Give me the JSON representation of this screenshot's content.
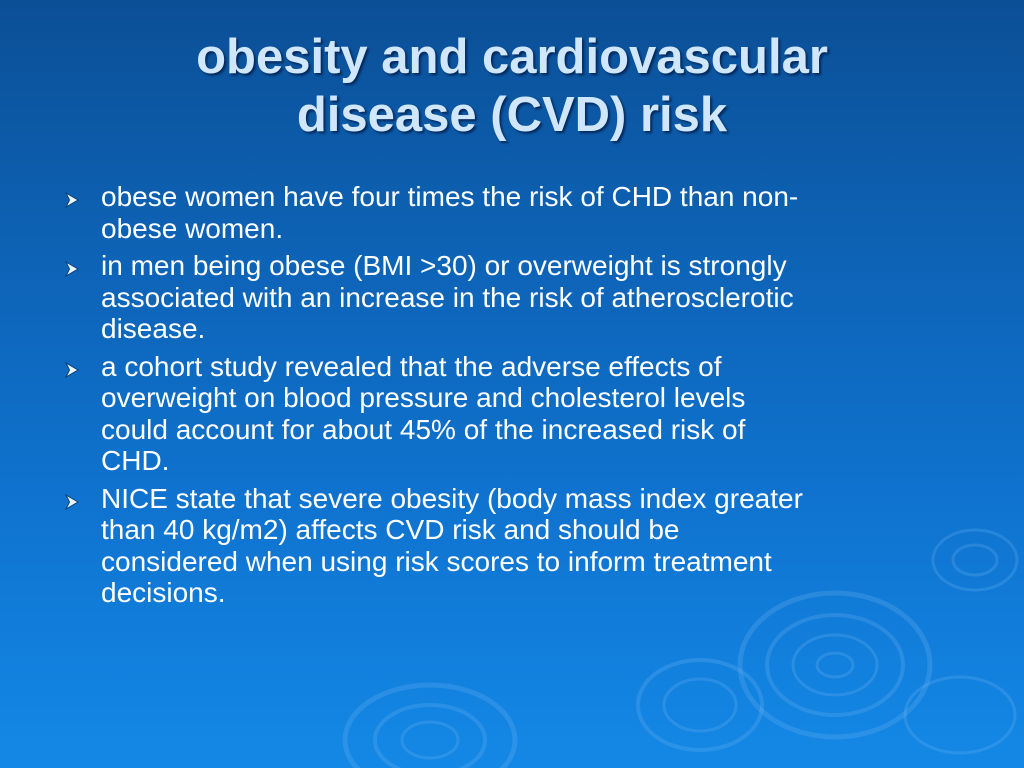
{
  "slide": {
    "title_lines": [
      "obesity and cardiovascular",
      "disease (CVD) risk"
    ],
    "bullets": [
      {
        "icon": "arrow-bullet-icon",
        "lines": [
          "obese women have four times the risk of CHD than non-",
          "obese women."
        ]
      },
      {
        "icon": "arrow-bullet-icon",
        "lines": [
          "in men being obese (BMI >30) or overweight is strongly",
          "associated with an increase in the risk of atherosclerotic",
          "disease."
        ]
      },
      {
        "icon": "arrow-bullet-icon",
        "lines": [
          "a cohort study revealed that the adverse effects of",
          "overweight on blood pressure and cholesterol levels",
          "could account for about 45% of the increased risk of",
          "CHD."
        ]
      },
      {
        "icon": "arrow-bullet-icon",
        "lines": [
          "NICE state that severe obesity (body mass index greater",
          "than 40 kg/m2) affects CVD risk and should be",
          "considered when using risk scores to inform treatment",
          "decisions."
        ]
      }
    ],
    "colors": {
      "background_top": "#0b4f96",
      "background_bottom": "#1488e6",
      "title": "#cfe6fb",
      "text": "#ffffff",
      "bullet": "#e8f4ff"
    }
  }
}
